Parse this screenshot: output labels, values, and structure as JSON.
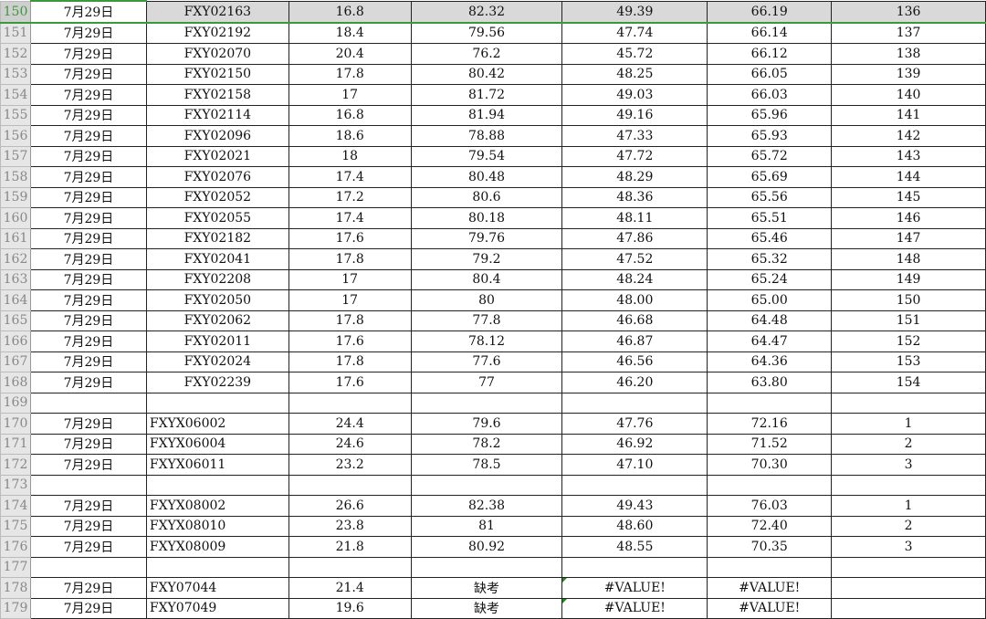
{
  "sheet": {
    "accent": "#3a9a3a",
    "selected_row": 150,
    "rows": [
      {
        "n": 150,
        "c": [
          "7月29日",
          "FXY02163",
          "16.8",
          "82.32",
          "49.39",
          "66.19",
          "136"
        ]
      },
      {
        "n": 151,
        "c": [
          "7月29日",
          "FXY02192",
          "18.4",
          "79.56",
          "47.74",
          "66.14",
          "137"
        ]
      },
      {
        "n": 152,
        "c": [
          "7月29日",
          "FXY02070",
          "20.4",
          "76.2",
          "45.72",
          "66.12",
          "138"
        ]
      },
      {
        "n": 153,
        "c": [
          "7月29日",
          "FXY02150",
          "17.8",
          "80.42",
          "48.25",
          "66.05",
          "139"
        ]
      },
      {
        "n": 154,
        "c": [
          "7月29日",
          "FXY02158",
          "17",
          "81.72",
          "49.03",
          "66.03",
          "140"
        ]
      },
      {
        "n": 155,
        "c": [
          "7月29日",
          "FXY02114",
          "16.8",
          "81.94",
          "49.16",
          "65.96",
          "141"
        ]
      },
      {
        "n": 156,
        "c": [
          "7月29日",
          "FXY02096",
          "18.6",
          "78.88",
          "47.33",
          "65.93",
          "142"
        ]
      },
      {
        "n": 157,
        "c": [
          "7月29日",
          "FXY02021",
          "18",
          "79.54",
          "47.72",
          "65.72",
          "143"
        ]
      },
      {
        "n": 158,
        "c": [
          "7月29日",
          "FXY02076",
          "17.4",
          "80.48",
          "48.29",
          "65.69",
          "144"
        ]
      },
      {
        "n": 159,
        "c": [
          "7月29日",
          "FXY02052",
          "17.2",
          "80.6",
          "48.36",
          "65.56",
          "145"
        ]
      },
      {
        "n": 160,
        "c": [
          "7月29日",
          "FXY02055",
          "17.4",
          "80.18",
          "48.11",
          "65.51",
          "146"
        ]
      },
      {
        "n": 161,
        "c": [
          "7月29日",
          "FXY02182",
          "17.6",
          "79.76",
          "47.86",
          "65.46",
          "147"
        ]
      },
      {
        "n": 162,
        "c": [
          "7月29日",
          "FXY02041",
          "17.8",
          "79.2",
          "47.52",
          "65.32",
          "148"
        ]
      },
      {
        "n": 163,
        "c": [
          "7月29日",
          "FXY02208",
          "17",
          "80.4",
          "48.24",
          "65.24",
          "149"
        ]
      },
      {
        "n": 164,
        "c": [
          "7月29日",
          "FXY02050",
          "17",
          "80",
          "48.00",
          "65.00",
          "150"
        ]
      },
      {
        "n": 165,
        "c": [
          "7月29日",
          "FXY02062",
          "17.8",
          "77.8",
          "46.68",
          "64.48",
          "151"
        ]
      },
      {
        "n": 166,
        "c": [
          "7月29日",
          "FXY02011",
          "17.6",
          "78.12",
          "46.87",
          "64.47",
          "152"
        ]
      },
      {
        "n": 167,
        "c": [
          "7月29日",
          "FXY02024",
          "17.8",
          "77.6",
          "46.56",
          "64.36",
          "153"
        ]
      },
      {
        "n": 168,
        "c": [
          "7月29日",
          "FXY02239",
          "17.6",
          "77",
          "46.20",
          "63.80",
          "154"
        ]
      },
      {
        "n": 169,
        "c": [
          "",
          "",
          "",
          "",
          "",
          "",
          ""
        ]
      },
      {
        "n": 170,
        "c": [
          "7月29日",
          "FXYX06002",
          "24.4",
          "79.6",
          "47.76",
          "72.16",
          "1"
        ]
      },
      {
        "n": 171,
        "c": [
          "7月29日",
          "FXYX06004",
          "24.6",
          "78.2",
          "46.92",
          "71.52",
          "2"
        ]
      },
      {
        "n": 172,
        "c": [
          "7月29日",
          "FXYX06011",
          "23.2",
          "78.5",
          "47.10",
          "70.30",
          "3"
        ]
      },
      {
        "n": 173,
        "c": [
          "",
          "",
          "",
          "",
          "",
          "",
          ""
        ]
      },
      {
        "n": 174,
        "c": [
          "7月29日",
          "FXYX08002",
          "26.6",
          "82.38",
          "49.43",
          "76.03",
          "1"
        ]
      },
      {
        "n": 175,
        "c": [
          "7月29日",
          "FXYX08010",
          "23.8",
          "81",
          "48.60",
          "72.40",
          "2"
        ]
      },
      {
        "n": 176,
        "c": [
          "7月29日",
          "FXYX08009",
          "21.8",
          "80.92",
          "48.55",
          "70.35",
          "3"
        ]
      },
      {
        "n": 177,
        "c": [
          "",
          "",
          "",
          "",
          "",
          "",
          ""
        ]
      },
      {
        "n": 178,
        "c": [
          "7月29日",
          "FXY07044",
          "21.4",
          "缺考",
          "#VALUE!",
          "#VALUE!",
          ""
        ]
      },
      {
        "n": 179,
        "c": [
          "7月29日",
          "FXY07049",
          "19.6",
          "缺考",
          "#VALUE!",
          "#VALUE!",
          ""
        ]
      }
    ]
  }
}
